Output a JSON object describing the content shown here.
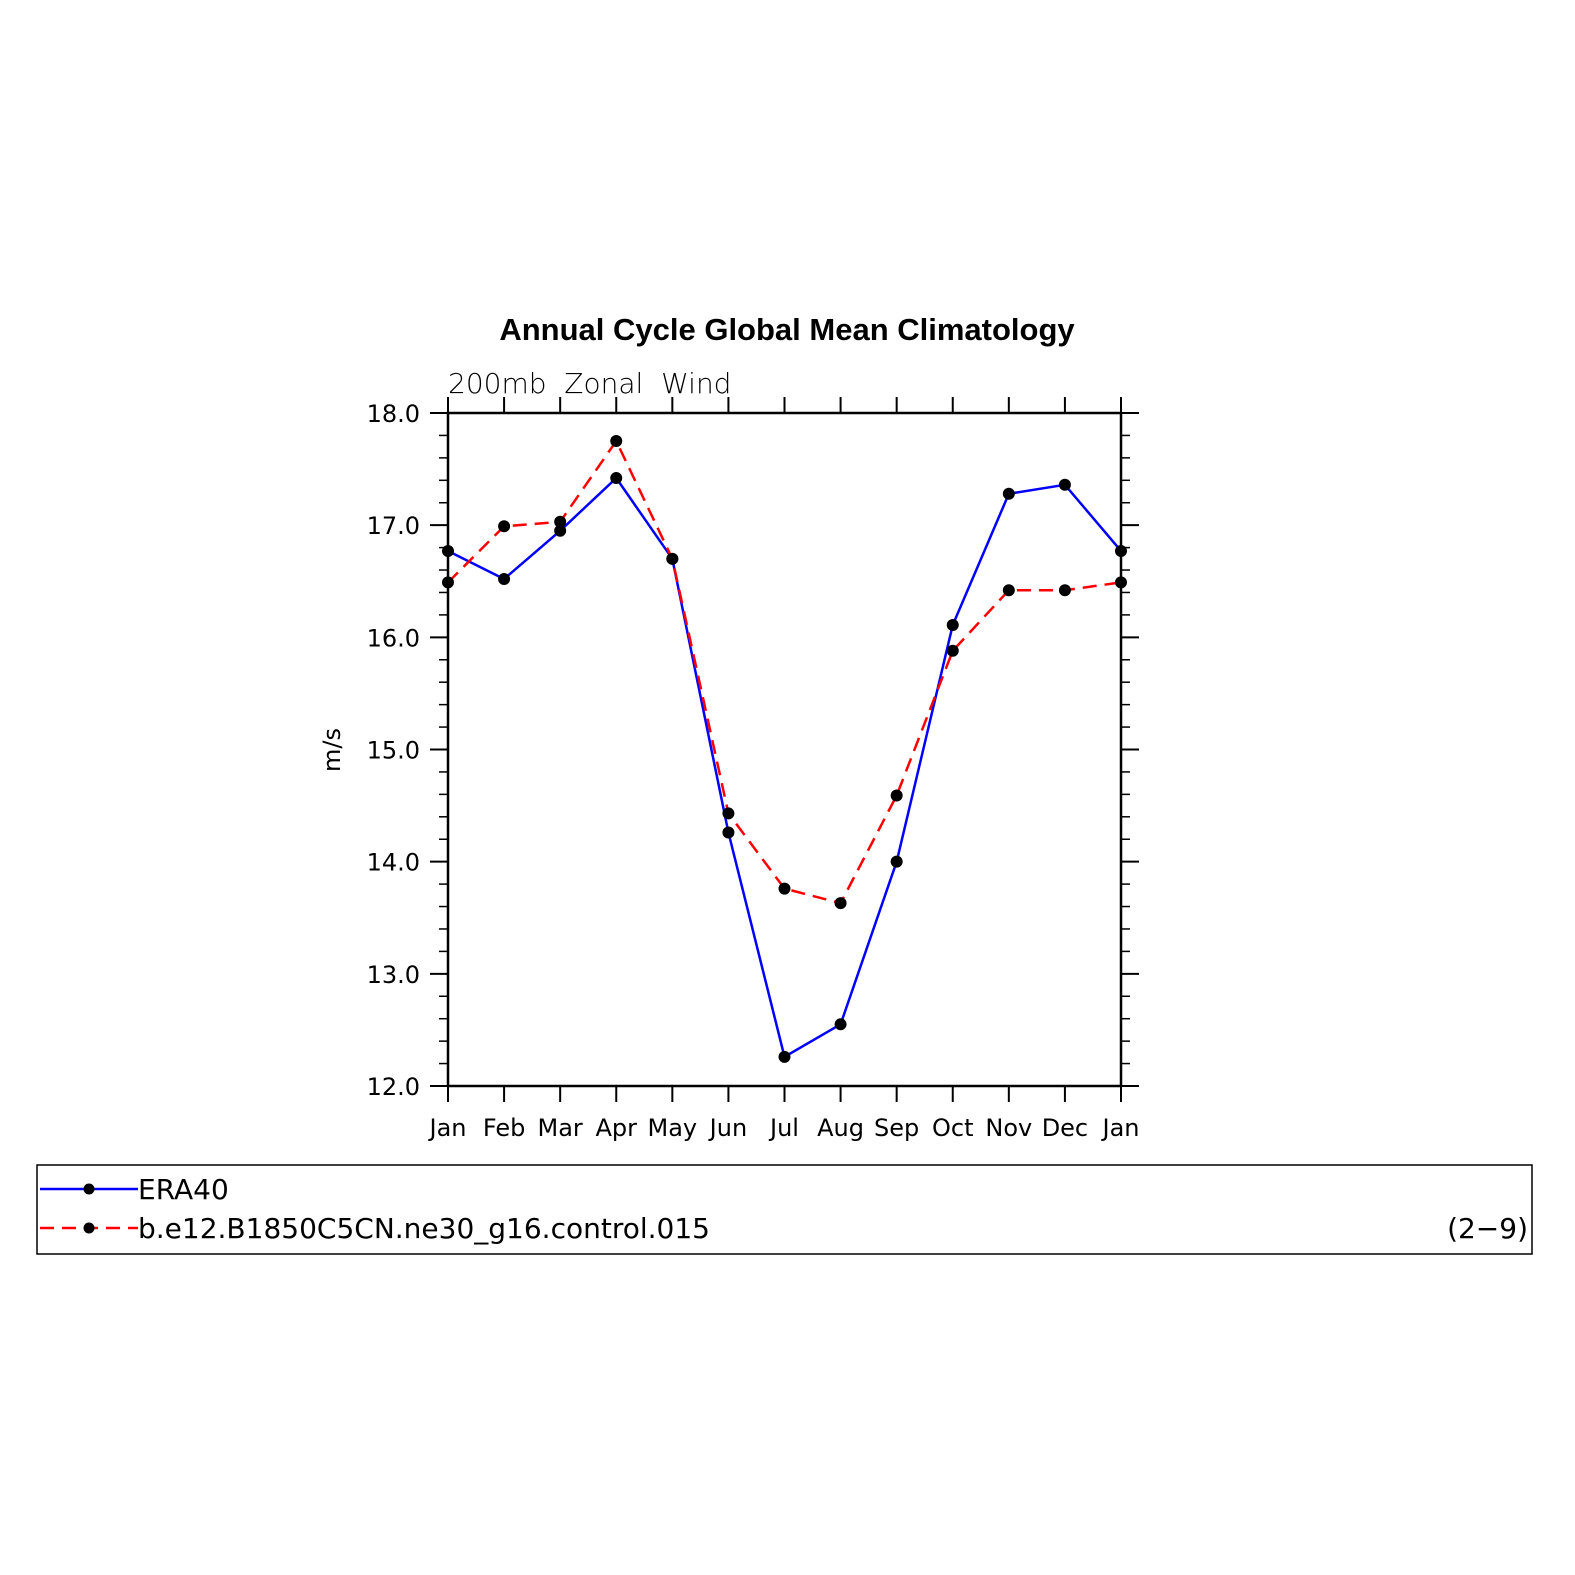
{
  "chart_data": {
    "type": "line",
    "title": "Annual Cycle Global Mean Climatology",
    "subtitle": "200mb  Zonal  Wind",
    "xlabel": "",
    "ylabel": "m/s",
    "categories": [
      "Jan",
      "Feb",
      "Mar",
      "Apr",
      "May",
      "Jun",
      "Jul",
      "Aug",
      "Sep",
      "Oct",
      "Nov",
      "Dec",
      "Jan"
    ],
    "ylim": [
      12.0,
      18.0
    ],
    "yticks": [
      "12.0",
      "13.0",
      "14.0",
      "15.0",
      "16.0",
      "17.0",
      "18.0"
    ],
    "grid": false,
    "legend_position": "bottom",
    "panel_label": "(2−9)",
    "series": [
      {
        "name": "ERA40",
        "color": "#0000ff",
        "dash": "solid",
        "values": [
          16.77,
          16.52,
          16.95,
          17.42,
          16.7,
          14.26,
          12.26,
          12.55,
          14.0,
          16.11,
          17.28,
          17.36,
          16.77
        ]
      },
      {
        "name": "b.e12.B1850C5CN.ne30_g16.control.015",
        "color": "#ff0000",
        "dash": "dashed",
        "values": [
          16.49,
          16.99,
          17.03,
          17.75,
          16.7,
          14.43,
          13.76,
          13.63,
          14.59,
          15.88,
          16.42,
          16.42,
          16.49
        ]
      }
    ]
  }
}
